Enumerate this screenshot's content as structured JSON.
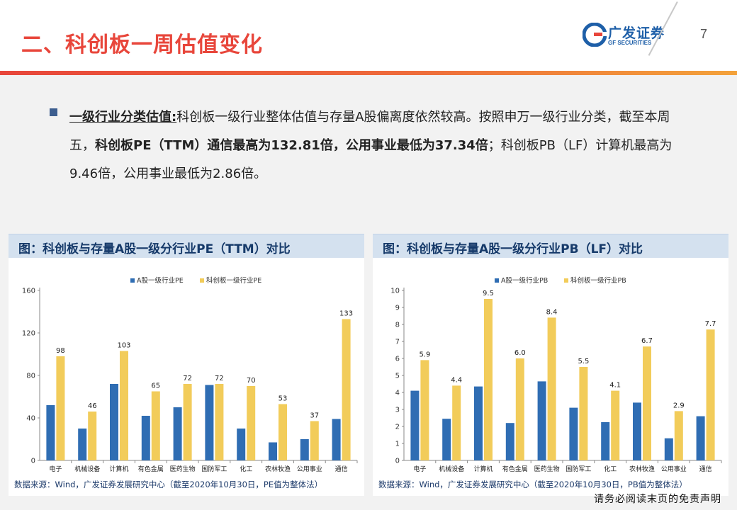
{
  "header": {
    "title": "二、科创板一周估值变化",
    "logo_cn": "广发证券",
    "logo_en": "GF SECURITIES",
    "page_number": "7",
    "colors": {
      "title": "#e8463b",
      "brand_blue": "#1e5fa8"
    }
  },
  "bullet": {
    "heading": "一级行业分类估值:",
    "text1": "科创板一级行业整体估值与存量A股偏离度依然较高。按照申万一级行业分类，截至本周五，",
    "bold_text": "科创板PE（TTM）通信最高为132.81倍，公用事业最低为37.34倍",
    "text2": "；科创板PB（LF）计算机最高为9.46倍，公用事业最低为2.86倍。"
  },
  "charts": [
    {
      "panel_title": "图：科创板与存量A股一级分行业PE（TTM）对比",
      "source": "数据来源：Wind，广发证券发展研究中心（截至2020年10月30日，PE值为整体法）"
    },
    {
      "panel_title": "图：科创板与存量A股一级分行业PB（LF）对比",
      "source": "数据来源：Wind，广发证券发展研究中心（截至2020年10月30日，PB值为整体法）"
    }
  ],
  "chart_data": [
    {
      "type": "bar",
      "categories": [
        "电子",
        "机械设备",
        "计算机",
        "有色金属",
        "医药生物",
        "国防军工",
        "化工",
        "农林牧渔",
        "公用事业",
        "通信"
      ],
      "series": [
        {
          "name": "A股一级行业PE",
          "color": "#2f6db3",
          "values": [
            52,
            30,
            72,
            42,
            50,
            71,
            30,
            17,
            20,
            39
          ]
        },
        {
          "name": "科创板一级行业PE",
          "color": "#f2cc5a",
          "values": [
            98,
            46,
            103,
            65,
            72,
            72,
            70,
            53,
            37,
            133
          ],
          "labels": [
            "98",
            "46",
            "103",
            "65",
            "72",
            "72",
            "70",
            "53",
            "37",
            "133"
          ]
        }
      ],
      "ylim": [
        0,
        160
      ],
      "yticks": [
        "0",
        "40",
        "80",
        "120",
        "160"
      ],
      "legend_position": "top"
    },
    {
      "type": "bar",
      "categories": [
        "电子",
        "机械设备",
        "计算机",
        "有色金属",
        "医药生物",
        "国防军工",
        "化工",
        "农林牧渔",
        "公用事业",
        "通信"
      ],
      "series": [
        {
          "name": "A股一级行业PB",
          "color": "#2f6db3",
          "values": [
            4.1,
            2.45,
            4.35,
            2.2,
            4.65,
            3.1,
            2.25,
            3.4,
            1.3,
            2.6
          ]
        },
        {
          "name": "科创板一级行业PB",
          "color": "#f2cc5a",
          "values": [
            5.9,
            4.4,
            9.5,
            6.0,
            8.4,
            5.5,
            4.1,
            6.7,
            2.9,
            7.7
          ],
          "labels": [
            "5.9",
            "4.4",
            "9.5",
            "6.0",
            "8.4",
            "5.5",
            "4.1",
            "6.7",
            "2.9",
            "7.7"
          ]
        }
      ],
      "ylim": [
        0,
        10
      ],
      "yticks": [
        "0",
        "1",
        "2",
        "3",
        "4",
        "5",
        "6",
        "7",
        "8",
        "9",
        "10"
      ],
      "legend_position": "top"
    }
  ],
  "footer": {
    "disclaimer": "请务必阅读末页的免责声明"
  }
}
